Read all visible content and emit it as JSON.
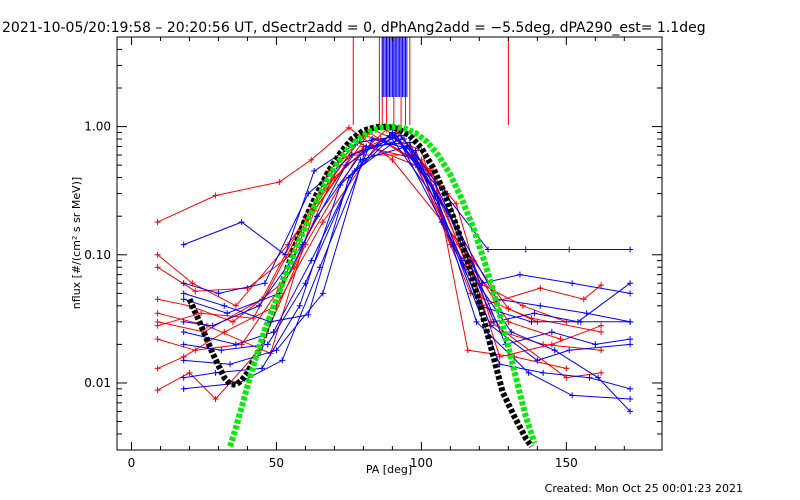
{
  "chart_data": {
    "type": "line",
    "title": "2021-10-05/20:19:58 – 20:20:56 UT, dSectr2add = 0, dPhAng2add = −5.5deg, dPA290_est=  1.1deg",
    "xlabel": "PA [deg]",
    "ylabel": "nflux [#/(cm² s sr MeV)]",
    "footer": "Created: Mon Oct 25 00:01:23 2021",
    "xlim": [
      -5,
      183
    ],
    "ylim": [
      0.003,
      5
    ],
    "yscale": "log",
    "grid": false,
    "legend": "none",
    "x_ticks": [
      0,
      50,
      100,
      150
    ],
    "x_tick_labels": [
      "0",
      "50",
      "100",
      "150"
    ],
    "y_ticks": [
      0.01,
      0.1,
      1.0
    ],
    "y_tick_labels": [
      "0.01",
      "0.10",
      "1.00"
    ],
    "colors": {
      "red_series": "#ff0000",
      "blue_series": "#0000ff",
      "black_fit": "#000000",
      "green_fit": "#00ee00",
      "axes": "#000000"
    },
    "vertical_markers": [
      {
        "color": "#ff0000",
        "x": [
          76.5,
          85.5,
          86.5,
          88,
          90.5,
          93,
          94.5,
          96,
          130
        ]
      },
      {
        "color": "#0000ff",
        "x": [
          86.5,
          87,
          87.5,
          88,
          88.5,
          89,
          89.5,
          90,
          90.5,
          91,
          91.5,
          92,
          92.5,
          93,
          93.5,
          94,
          94.5,
          95
        ]
      }
    ],
    "series": [
      {
        "color": "#ff0000",
        "x": [
          9,
          29,
          51,
          62,
          75,
          90,
          118,
          130,
          140
        ],
        "y": [
          0.18,
          0.29,
          0.37,
          0.55,
          0.98,
          0.55,
          0.09,
          0.038,
          0.03
        ]
      },
      {
        "color": "#ff0000",
        "x": [
          9,
          22,
          40,
          55,
          68,
          83,
          100,
          110,
          125
        ],
        "y": [
          0.08,
          0.052,
          0.055,
          0.1,
          0.45,
          0.95,
          0.65,
          0.12,
          0.05
        ]
      },
      {
        "color": "#ff0000",
        "x": [
          9,
          20,
          35,
          52,
          65,
          80,
          96,
          107,
          120,
          135,
          150
        ],
        "y": [
          0.045,
          0.04,
          0.03,
          0.06,
          0.3,
          0.85,
          0.7,
          0.2,
          0.06,
          0.04,
          0.03
        ]
      },
      {
        "color": "#ff0000",
        "x": [
          9,
          25,
          45,
          60,
          78,
          98,
          115,
          128,
          142,
          162
        ],
        "y": [
          0.03,
          0.025,
          0.045,
          0.2,
          0.75,
          0.5,
          0.08,
          0.025,
          0.02,
          0.018
        ]
      },
      {
        "color": "#ff0000",
        "x": [
          9,
          22,
          38,
          56,
          72,
          92,
          112,
          124,
          150,
          162
        ],
        "y": [
          0.022,
          0.018,
          0.02,
          0.08,
          0.55,
          0.9,
          0.25,
          0.03,
          0.011,
          0.012
        ]
      },
      {
        "color": "#ff0000",
        "x": [
          9,
          18,
          32,
          50,
          66,
          86,
          104,
          116,
          132,
          150
        ],
        "y": [
          0.013,
          0.016,
          0.025,
          0.04,
          0.18,
          0.8,
          0.45,
          0.018,
          0.016,
          0.013
        ]
      },
      {
        "color": "#ff0000",
        "x": [
          9,
          20,
          29,
          44,
          60,
          80,
          100,
          113,
          130,
          148
        ],
        "y": [
          0.0088,
          0.012,
          0.0075,
          0.018,
          0.12,
          0.7,
          0.55,
          0.12,
          0.03,
          0.022
        ]
      },
      {
        "color": "#ff0000",
        "x": [
          9,
          24,
          42,
          58,
          76,
          97,
          117,
          138,
          162
        ],
        "y": [
          0.028,
          0.035,
          0.032,
          0.15,
          0.6,
          0.6,
          0.05,
          0.032,
          0.025
        ]
      },
      {
        "color": "#ff0000",
        "x": [
          9,
          21,
          36,
          54,
          70,
          88,
          109,
          127,
          145,
          162
        ],
        "y": [
          0.1,
          0.06,
          0.04,
          0.12,
          0.4,
          0.95,
          0.3,
          0.016,
          0.02,
          0.028
        ]
      },
      {
        "color": "#ff0000",
        "x": [
          9,
          26,
          48,
          63,
          82,
          103,
          121,
          141,
          156,
          162
        ],
        "y": [
          0.035,
          0.028,
          0.017,
          0.22,
          0.9,
          0.45,
          0.04,
          0.055,
          0.045,
          0.058
        ]
      },
      {
        "color": "#0000ff",
        "x": [
          18,
          38,
          53,
          63,
          78,
          93,
          108,
          123,
          136,
          151,
          172
        ],
        "y": [
          0.12,
          0.18,
          0.1,
          0.45,
          0.75,
          0.85,
          0.3,
          0.11,
          0.11,
          0.11,
          0.11
        ]
      },
      {
        "color": "#0000ff",
        "x": [
          18,
          30,
          46,
          61,
          76,
          91,
          105,
          121,
          134,
          152,
          172
        ],
        "y": [
          0.06,
          0.05,
          0.06,
          0.3,
          0.6,
          0.82,
          0.35,
          0.06,
          0.07,
          0.06,
          0.05
        ]
      },
      {
        "color": "#0000ff",
        "x": [
          18,
          33,
          51,
          64,
          80,
          94,
          110,
          126,
          141,
          157,
          172
        ],
        "y": [
          0.045,
          0.035,
          0.05,
          0.2,
          0.65,
          0.8,
          0.2,
          0.045,
          0.04,
          0.035,
          0.03
        ]
      },
      {
        "color": "#0000ff",
        "x": [
          18,
          28,
          44,
          59,
          74,
          89,
          106,
          120,
          138,
          155,
          172
        ],
        "y": [
          0.03,
          0.028,
          0.04,
          0.12,
          0.5,
          0.85,
          0.25,
          0.04,
          0.03,
          0.03,
          0.03
        ]
      },
      {
        "color": "#0000ff",
        "x": [
          18,
          36,
          49,
          62,
          79,
          95,
          113,
          129,
          145,
          160,
          172
        ],
        "y": [
          0.025,
          0.02,
          0.025,
          0.09,
          0.55,
          0.7,
          0.15,
          0.02,
          0.025,
          0.02,
          0.022
        ]
      },
      {
        "color": "#0000ff",
        "x": [
          18,
          31,
          47,
          60,
          77,
          92,
          107,
          124,
          140,
          151,
          172
        ],
        "y": [
          0.02,
          0.018,
          0.02,
          0.06,
          0.45,
          0.8,
          0.18,
          0.028,
          0.015,
          0.018,
          0.02
        ]
      },
      {
        "color": "#0000ff",
        "x": [
          18,
          34,
          50,
          66,
          81,
          96,
          111,
          127,
          142,
          158,
          172
        ],
        "y": [
          0.015,
          0.014,
          0.018,
          0.05,
          0.7,
          0.75,
          0.12,
          0.014,
          0.012,
          0.011,
          0.009
        ]
      },
      {
        "color": "#0000ff",
        "x": [
          18,
          29,
          45,
          58,
          72,
          90,
          105,
          119,
          137,
          152,
          172
        ],
        "y": [
          0.011,
          0.012,
          0.013,
          0.04,
          0.35,
          0.9,
          0.3,
          0.03,
          0.012,
          0.008,
          0.0075
        ]
      },
      {
        "color": "#0000ff",
        "x": [
          18,
          37,
          52,
          65,
          83,
          98,
          114,
          131,
          146,
          161,
          172
        ],
        "y": [
          0.009,
          0.01,
          0.015,
          0.08,
          0.8,
          0.65,
          0.09,
          0.025,
          0.018,
          0.011,
          0.006
        ]
      },
      {
        "color": "#0000ff",
        "x": [
          18,
          32,
          48,
          61,
          75,
          91,
          109,
          125,
          139,
          154,
          172
        ],
        "y": [
          0.05,
          0.04,
          0.03,
          0.034,
          0.4,
          0.88,
          0.22,
          0.03,
          0.035,
          0.03,
          0.06
        ]
      }
    ],
    "fits": [
      {
        "name_hidden": "black",
        "color": "#000000",
        "x": [
          20,
          24,
          28,
          32,
          34,
          36,
          38,
          40,
          44,
          48,
          52,
          56,
          60,
          64,
          68,
          72,
          76,
          80,
          84,
          88,
          92,
          96,
          100,
          104,
          108,
          112,
          116,
          120,
          124,
          128,
          132,
          136,
          138
        ],
        "y": [
          0.045,
          0.028,
          0.017,
          0.011,
          0.0098,
          0.0097,
          0.0105,
          0.012,
          0.018,
          0.033,
          0.06,
          0.11,
          0.19,
          0.3,
          0.45,
          0.62,
          0.8,
          0.93,
          0.99,
          1.0,
          0.96,
          0.85,
          0.68,
          0.48,
          0.3,
          0.17,
          0.088,
          0.042,
          0.019,
          0.0085,
          0.0055,
          0.0037,
          0.0032
        ]
      },
      {
        "name_hidden": "green",
        "color": "#00ee00",
        "x": [
          34,
          36,
          38,
          40,
          43,
          46,
          50,
          54,
          58,
          62,
          66,
          70,
          74,
          78,
          82,
          86,
          90,
          94,
          98,
          102,
          106,
          110,
          114,
          118,
          122,
          126,
          130,
          134,
          136,
          139
        ],
        "y": [
          0.0032,
          0.0045,
          0.0065,
          0.0095,
          0.016,
          0.026,
          0.045,
          0.078,
          0.13,
          0.21,
          0.33,
          0.48,
          0.64,
          0.79,
          0.91,
          0.98,
          1.0,
          0.97,
          0.89,
          0.76,
          0.59,
          0.42,
          0.27,
          0.16,
          0.085,
          0.042,
          0.019,
          0.0082,
          0.0055,
          0.0034
        ]
      }
    ]
  }
}
